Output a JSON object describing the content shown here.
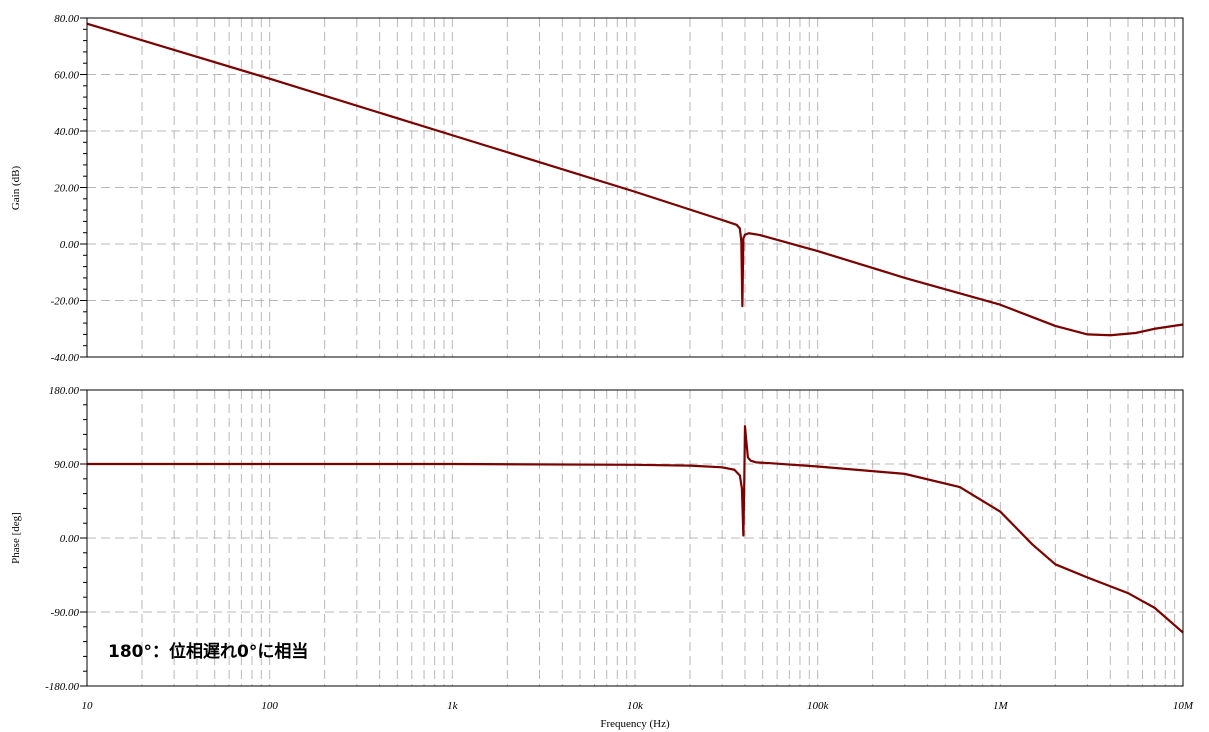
{
  "chart_data": [
    {
      "type": "line",
      "id": "gain",
      "ylabel": "Gain (dB)",
      "xscale": "log",
      "xlim": [
        10,
        10000000
      ],
      "ylim": [
        -40,
        80
      ],
      "yticks": [
        80,
        60,
        40,
        20,
        0,
        -20,
        -40
      ],
      "ytick_labels": [
        "80.00",
        "60.00",
        "40.00",
        "20.00",
        "0.00",
        "-20.00",
        "-40.00"
      ],
      "grid": true,
      "series": [
        {
          "color": "#7b0000",
          "x": [
            10,
            100,
            1000,
            10000,
            30000,
            36000,
            37500,
            38200,
            38700,
            39200,
            40000,
            42000,
            48000,
            60000,
            100000,
            300000,
            1000000,
            2000000,
            3000000,
            4000000,
            5500000,
            7000000,
            10000000
          ],
          "y": [
            78,
            58.5,
            38.5,
            18.5,
            8.5,
            6.8,
            5.5,
            1,
            -22,
            2,
            3.3,
            3.8,
            3.2,
            1.5,
            -2.5,
            -12,
            -21.5,
            -29,
            -32,
            -32.3,
            -31.5,
            -30,
            -28.5
          ]
        }
      ]
    },
    {
      "type": "line",
      "id": "phase",
      "ylabel": "Phase [deg]",
      "xlabel": "Frequency (Hz)",
      "xscale": "log",
      "xlim": [
        10,
        10000000
      ],
      "ylim": [
        -180,
        180
      ],
      "yticks": [
        180,
        90,
        0,
        -90,
        -180
      ],
      "ytick_labels": [
        "180.00",
        "90.00",
        "0.00",
        "-90.00",
        "-180.00"
      ],
      "xticks": [
        10,
        100,
        1000,
        10000,
        100000,
        1000000,
        10000000
      ],
      "xtick_labels": [
        "10",
        "100",
        "1k",
        "10k",
        "100k",
        "1M",
        "10M"
      ],
      "grid": true,
      "annotation": "180°：位相遅れ0°に相当",
      "series": [
        {
          "color": "#7b0000",
          "x": [
            10,
            1000,
            10000,
            20000,
            30000,
            35000,
            37500,
            38500,
            39200,
            39600,
            40000,
            40600,
            41500,
            43000,
            46000,
            55000,
            100000,
            300000,
            600000,
            1000000,
            1500000,
            2000000,
            3000000,
            5000000,
            7000000,
            10000000
          ],
          "y": [
            90,
            90,
            89,
            88,
            86,
            83,
            76,
            60,
            3,
            60,
            136,
            120,
            98,
            94,
            92,
            91,
            87,
            78,
            62,
            32,
            -8,
            -32,
            -48,
            -67,
            -85,
            -115
          ]
        }
      ]
    }
  ]
}
